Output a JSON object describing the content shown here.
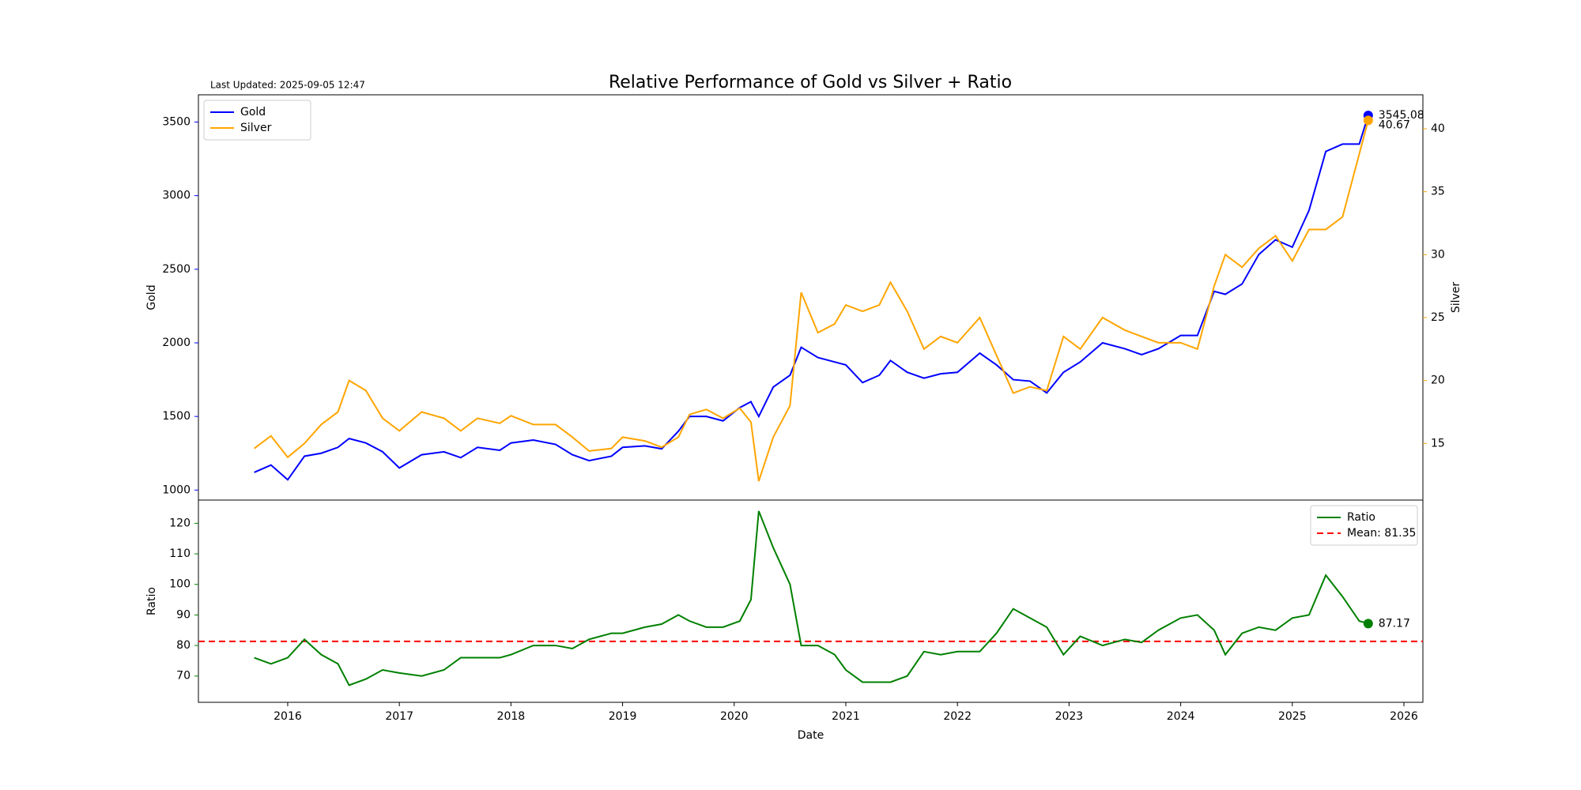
{
  "chart_data": [
    {
      "type": "line",
      "title": "Relative Performance of Gold vs Silver + Ratio",
      "annotation": "Last Updated: 2025-09-05 12:47",
      "x": [
        2015.7,
        2015.85,
        2016.0,
        2016.15,
        2016.3,
        2016.45,
        2016.55,
        2016.7,
        2016.85,
        2017.0,
        2017.2,
        2017.4,
        2017.55,
        2017.7,
        2017.9,
        2018.0,
        2018.2,
        2018.4,
        2018.55,
        2018.7,
        2018.9,
        2019.0,
        2019.2,
        2019.35,
        2019.5,
        2019.6,
        2019.75,
        2019.9,
        2020.05,
        2020.15,
        2020.22,
        2020.35,
        2020.5,
        2020.6,
        2020.75,
        2020.9,
        2021.0,
        2021.15,
        2021.3,
        2021.4,
        2021.55,
        2021.7,
        2021.85,
        2022.0,
        2022.2,
        2022.35,
        2022.5,
        2022.65,
        2022.8,
        2022.95,
        2023.1,
        2023.3,
        2023.5,
        2023.65,
        2023.8,
        2024.0,
        2024.15,
        2024.3,
        2024.4,
        2024.55,
        2024.7,
        2024.85,
        2025.0,
        2025.15,
        2025.3,
        2025.45,
        2025.6,
        2025.68
      ],
      "series": [
        {
          "name": "Gold",
          "color": "#0000ff",
          "axis": "y",
          "values": [
            1120,
            1170,
            1070,
            1230,
            1250,
            1290,
            1350,
            1320,
            1260,
            1150,
            1240,
            1260,
            1220,
            1290,
            1270,
            1320,
            1340,
            1310,
            1240,
            1200,
            1230,
            1290,
            1300,
            1280,
            1400,
            1500,
            1500,
            1470,
            1560,
            1600,
            1500,
            1700,
            1780,
            1970,
            1900,
            1870,
            1850,
            1730,
            1780,
            1880,
            1800,
            1760,
            1790,
            1800,
            1930,
            1850,
            1750,
            1740,
            1660,
            1800,
            1870,
            2000,
            1960,
            1920,
            1960,
            2050,
            2050,
            2350,
            2330,
            2400,
            2600,
            2700,
            2650,
            2900,
            3300,
            3350,
            3350,
            3545.08
          ]
        },
        {
          "name": "Silver",
          "color": "#ffa500",
          "axis": "y2",
          "values": [
            14.6,
            15.6,
            13.9,
            15.0,
            16.5,
            17.5,
            20.0,
            19.2,
            17.0,
            16.0,
            17.5,
            17.0,
            16.0,
            17.0,
            16.6,
            17.2,
            16.5,
            16.5,
            15.5,
            14.4,
            14.6,
            15.5,
            15.2,
            14.7,
            15.5,
            17.3,
            17.7,
            17.0,
            17.8,
            16.7,
            12.0,
            15.5,
            18.0,
            27.0,
            23.8,
            24.5,
            26.0,
            25.5,
            26.0,
            27.8,
            25.5,
            22.5,
            23.5,
            23.0,
            25.0,
            22.0,
            19.0,
            19.5,
            19.2,
            23.5,
            22.5,
            25.0,
            24.0,
            23.5,
            23.0,
            23.0,
            22.5,
            27.5,
            30.0,
            29.0,
            30.5,
            31.5,
            29.5,
            32.0,
            32.0,
            33.0,
            38.0,
            40.67
          ]
        }
      ],
      "xlim": [
        2015.2,
        2026.17
      ],
      "ylim": [
        932,
        3685
      ],
      "yticks": [
        1000,
        1500,
        2000,
        2500,
        3000,
        3500
      ],
      "ylabel": "Gold",
      "y2lim": [
        10.5,
        42.7
      ],
      "y2ticks": [
        15,
        20,
        25,
        30,
        35,
        40
      ],
      "y2label": "Silver",
      "legend": "upper left"
    },
    {
      "type": "line",
      "x": [
        2015.7,
        2015.85,
        2016.0,
        2016.15,
        2016.3,
        2016.45,
        2016.55,
        2016.7,
        2016.85,
        2017.0,
        2017.2,
        2017.4,
        2017.55,
        2017.7,
        2017.9,
        2018.0,
        2018.2,
        2018.4,
        2018.55,
        2018.7,
        2018.9,
        2019.0,
        2019.2,
        2019.35,
        2019.5,
        2019.6,
        2019.75,
        2019.9,
        2020.05,
        2020.15,
        2020.22,
        2020.35,
        2020.5,
        2020.6,
        2020.75,
        2020.9,
        2021.0,
        2021.15,
        2021.3,
        2021.4,
        2021.55,
        2021.7,
        2021.85,
        2022.0,
        2022.2,
        2022.35,
        2022.5,
        2022.65,
        2022.8,
        2022.95,
        2023.1,
        2023.3,
        2023.5,
        2023.65,
        2023.8,
        2024.0,
        2024.15,
        2024.3,
        2024.4,
        2024.55,
        2024.7,
        2024.85,
        2025.0,
        2025.15,
        2025.3,
        2025.45,
        2025.6,
        2025.68
      ],
      "series": [
        {
          "name": "Ratio",
          "color": "#008000",
          "axis": "y",
          "values": [
            76,
            74,
            76,
            82,
            77,
            74,
            67,
            69,
            72,
            71,
            70,
            72,
            76,
            76,
            76,
            77,
            80,
            80,
            79,
            82,
            84,
            84,
            86,
            87,
            90,
            88,
            86,
            86,
            88,
            95,
            124,
            112,
            100,
            80,
            80,
            77,
            72,
            68,
            68,
            68,
            70,
            78,
            77,
            78,
            78,
            84,
            92,
            89,
            86,
            77,
            83,
            80,
            82,
            81,
            85,
            89,
            90,
            85,
            77,
            84,
            86,
            85,
            89,
            90,
            103,
            96,
            88,
            87.17
          ]
        }
      ],
      "mean_line": {
        "name": "Mean: 81.35",
        "value": 81.35,
        "color": "#ff0000"
      },
      "xlim": [
        2015.2,
        2026.17
      ],
      "xticks": [
        2016,
        2017,
        2018,
        2019,
        2020,
        2021,
        2022,
        2023,
        2024,
        2025,
        2026
      ],
      "xlabel": "Date",
      "ylim": [
        61.4,
        127.6
      ],
      "yticks": [
        70,
        80,
        90,
        100,
        110,
        120
      ],
      "ylabel": "Ratio",
      "legend": "upper right"
    }
  ]
}
